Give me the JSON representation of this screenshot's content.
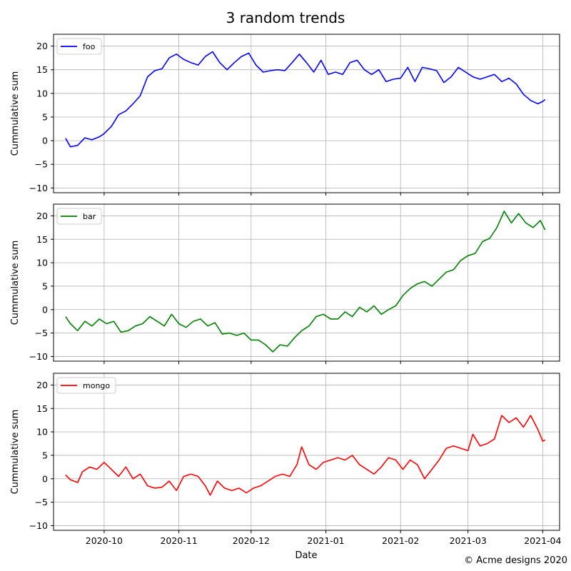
{
  "title": "3 random trends",
  "credit": "© Acme designs 2020",
  "chart_data": {
    "type": "line",
    "shared_x": true,
    "xlabel": "Date",
    "x_ticks": [
      "2020-10",
      "2020-11",
      "2020-12",
      "2021-01",
      "2021-02",
      "2021-03",
      "2021-04"
    ],
    "y_ticks": [
      "−10",
      "−5",
      "0",
      "5",
      "10",
      "15",
      "20"
    ],
    "ylim": [
      -11,
      22.5
    ],
    "grid": true,
    "legend_position": "top-left",
    "panels": [
      {
        "ylabel": "Cummulative sum",
        "series": [
          {
            "name": "foo",
            "color": "#0000ff",
            "points": [
              [
                "2020-09-15",
                0.5
              ],
              [
                "2020-09-17",
                -1.3
              ],
              [
                "2020-09-20",
                -1.0
              ],
              [
                "2020-09-23",
                0.6
              ],
              [
                "2020-09-26",
                0.2
              ],
              [
                "2020-09-29",
                0.8
              ],
              [
                "2020-10-01",
                1.5
              ],
              [
                "2020-10-04",
                3.0
              ],
              [
                "2020-10-07",
                5.5
              ],
              [
                "2020-10-10",
                6.3
              ],
              [
                "2020-10-13",
                7.8
              ],
              [
                "2020-10-16",
                9.5
              ],
              [
                "2020-10-19",
                13.5
              ],
              [
                "2020-10-22",
                14.8
              ],
              [
                "2020-10-25",
                15.2
              ],
              [
                "2020-10-28",
                17.5
              ],
              [
                "2020-10-31",
                18.3
              ],
              [
                "2020-11-03",
                17.2
              ],
              [
                "2020-11-06",
                16.5
              ],
              [
                "2020-11-09",
                16.0
              ],
              [
                "2020-11-12",
                17.8
              ],
              [
                "2020-11-15",
                18.8
              ],
              [
                "2020-11-18",
                16.5
              ],
              [
                "2020-11-21",
                15.0
              ],
              [
                "2020-11-24",
                16.5
              ],
              [
                "2020-11-27",
                17.8
              ],
              [
                "2020-11-30",
                18.5
              ],
              [
                "2020-12-03",
                16.0
              ],
              [
                "2020-12-06",
                14.5
              ],
              [
                "2020-12-09",
                14.8
              ],
              [
                "2020-12-12",
                15.0
              ],
              [
                "2020-12-15",
                14.8
              ],
              [
                "2020-12-18",
                16.5
              ],
              [
                "2020-12-21",
                18.3
              ],
              [
                "2020-12-24",
                16.5
              ],
              [
                "2020-12-27",
                14.5
              ],
              [
                "2020-12-30",
                17.0
              ],
              [
                "2021-01-02",
                14.0
              ],
              [
                "2021-01-05",
                14.5
              ],
              [
                "2021-01-08",
                14.0
              ],
              [
                "2021-01-11",
                16.5
              ],
              [
                "2021-01-14",
                17.0
              ],
              [
                "2021-01-17",
                15.0
              ],
              [
                "2021-01-20",
                14.0
              ],
              [
                "2021-01-23",
                15.0
              ],
              [
                "2021-01-26",
                12.5
              ],
              [
                "2021-01-29",
                13.0
              ],
              [
                "2021-02-01",
                13.2
              ],
              [
                "2021-02-04",
                15.5
              ],
              [
                "2021-02-07",
                12.5
              ],
              [
                "2021-02-10",
                15.5
              ],
              [
                "2021-02-13",
                15.2
              ],
              [
                "2021-02-16",
                14.8
              ],
              [
                "2021-02-19",
                12.3
              ],
              [
                "2021-02-22",
                13.5
              ],
              [
                "2021-02-25",
                15.5
              ],
              [
                "2021-02-28",
                14.5
              ],
              [
                "2021-03-03",
                13.5
              ],
              [
                "2021-03-06",
                13.0
              ],
              [
                "2021-03-09",
                13.5
              ],
              [
                "2021-03-12",
                14.0
              ],
              [
                "2021-03-15",
                12.5
              ],
              [
                "2021-03-18",
                13.2
              ],
              [
                "2021-03-21",
                12.0
              ],
              [
                "2021-03-24",
                9.8
              ],
              [
                "2021-03-27",
                8.5
              ],
              [
                "2021-03-30",
                7.8
              ],
              [
                "2021-04-01",
                8.3
              ],
              [
                "2021-04-02",
                8.7
              ]
            ]
          }
        ]
      },
      {
        "ylabel": "Cummulative sum",
        "series": [
          {
            "name": "bar",
            "color": "#008000",
            "points": [
              [
                "2020-09-15",
                -1.5
              ],
              [
                "2020-09-17",
                -3.0
              ],
              [
                "2020-09-20",
                -4.5
              ],
              [
                "2020-09-23",
                -2.5
              ],
              [
                "2020-09-26",
                -3.5
              ],
              [
                "2020-09-29",
                -2.0
              ],
              [
                "2020-10-02",
                -3.0
              ],
              [
                "2020-10-05",
                -2.5
              ],
              [
                "2020-10-08",
                -4.8
              ],
              [
                "2020-10-11",
                -4.5
              ],
              [
                "2020-10-14",
                -3.5
              ],
              [
                "2020-10-17",
                -3.0
              ],
              [
                "2020-10-20",
                -1.5
              ],
              [
                "2020-10-23",
                -2.5
              ],
              [
                "2020-10-26",
                -3.5
              ],
              [
                "2020-10-29",
                -1.0
              ],
              [
                "2020-11-01",
                -3.0
              ],
              [
                "2020-11-04",
                -3.8
              ],
              [
                "2020-11-07",
                -2.5
              ],
              [
                "2020-11-10",
                -2.0
              ],
              [
                "2020-11-13",
                -3.5
              ],
              [
                "2020-11-16",
                -2.8
              ],
              [
                "2020-11-19",
                -5.2
              ],
              [
                "2020-11-22",
                -5.0
              ],
              [
                "2020-11-25",
                -5.5
              ],
              [
                "2020-11-28",
                -5.0
              ],
              [
                "2020-12-01",
                -6.5
              ],
              [
                "2020-12-04",
                -6.5
              ],
              [
                "2020-12-07",
                -7.5
              ],
              [
                "2020-12-10",
                -9.0
              ],
              [
                "2020-12-13",
                -7.5
              ],
              [
                "2020-12-16",
                -7.8
              ],
              [
                "2020-12-19",
                -6.0
              ],
              [
                "2020-12-22",
                -4.5
              ],
              [
                "2020-12-25",
                -3.5
              ],
              [
                "2020-12-28",
                -1.5
              ],
              [
                "2020-12-31",
                -1.0
              ],
              [
                "2021-01-03",
                -2.0
              ],
              [
                "2021-01-06",
                -2.0
              ],
              [
                "2021-01-09",
                -0.5
              ],
              [
                "2021-01-12",
                -1.5
              ],
              [
                "2021-01-15",
                0.5
              ],
              [
                "2021-01-18",
                -0.5
              ],
              [
                "2021-01-21",
                0.8
              ],
              [
                "2021-01-24",
                -1.0
              ],
              [
                "2021-01-27",
                0.0
              ],
              [
                "2021-01-30",
                0.8
              ],
              [
                "2021-02-02",
                3.0
              ],
              [
                "2021-02-05",
                4.5
              ],
              [
                "2021-02-08",
                5.5
              ],
              [
                "2021-02-11",
                6.0
              ],
              [
                "2021-02-14",
                5.0
              ],
              [
                "2021-02-17",
                6.5
              ],
              [
                "2021-02-20",
                8.0
              ],
              [
                "2021-02-23",
                8.5
              ],
              [
                "2021-02-26",
                10.5
              ],
              [
                "2021-03-01",
                11.5
              ],
              [
                "2021-03-04",
                12.0
              ],
              [
                "2021-03-07",
                14.5
              ],
              [
                "2021-03-10",
                15.2
              ],
              [
                "2021-03-13",
                17.5
              ],
              [
                "2021-03-16",
                21.0
              ],
              [
                "2021-03-19",
                18.5
              ],
              [
                "2021-03-22",
                20.5
              ],
              [
                "2021-03-25",
                18.5
              ],
              [
                "2021-03-28",
                17.5
              ],
              [
                "2021-03-31",
                19.0
              ],
              [
                "2021-04-02",
                17.0
              ]
            ]
          }
        ]
      },
      {
        "ylabel": "Cummulative sum",
        "series": [
          {
            "name": "mongo",
            "color": "#ff0000",
            "points": [
              [
                "2020-09-15",
                0.8
              ],
              [
                "2020-09-17",
                -0.2
              ],
              [
                "2020-09-20",
                -0.8
              ],
              [
                "2020-09-22",
                1.5
              ],
              [
                "2020-09-25",
                2.5
              ],
              [
                "2020-09-28",
                2.0
              ],
              [
                "2020-10-01",
                3.5
              ],
              [
                "2020-10-04",
                2.0
              ],
              [
                "2020-10-07",
                0.5
              ],
              [
                "2020-10-10",
                2.5
              ],
              [
                "2020-10-13",
                0.0
              ],
              [
                "2020-10-16",
                1.0
              ],
              [
                "2020-10-19",
                -1.5
              ],
              [
                "2020-10-22",
                -2.0
              ],
              [
                "2020-10-25",
                -1.8
              ],
              [
                "2020-10-28",
                -0.5
              ],
              [
                "2020-10-31",
                -2.5
              ],
              [
                "2020-11-03",
                0.5
              ],
              [
                "2020-11-06",
                1.0
              ],
              [
                "2020-11-09",
                0.5
              ],
              [
                "2020-11-12",
                -1.5
              ],
              [
                "2020-11-14",
                -3.5
              ],
              [
                "2020-11-17",
                -0.5
              ],
              [
                "2020-11-20",
                -2.0
              ],
              [
                "2020-11-23",
                -2.5
              ],
              [
                "2020-11-26",
                -2.0
              ],
              [
                "2020-11-29",
                -3.0
              ],
              [
                "2020-12-02",
                -2.0
              ],
              [
                "2020-12-05",
                -1.5
              ],
              [
                "2020-12-08",
                -0.5
              ],
              [
                "2020-12-11",
                0.5
              ],
              [
                "2020-12-14",
                1.0
              ],
              [
                "2020-12-17",
                0.5
              ],
              [
                "2020-12-20",
                3.0
              ],
              [
                "2020-12-22",
                6.8
              ],
              [
                "2020-12-25",
                3.0
              ],
              [
                "2020-12-28",
                2.0
              ],
              [
                "2020-12-31",
                3.5
              ],
              [
                "2021-01-03",
                4.0
              ],
              [
                "2021-01-06",
                4.5
              ],
              [
                "2021-01-09",
                4.0
              ],
              [
                "2021-01-12",
                5.0
              ],
              [
                "2021-01-15",
                3.0
              ],
              [
                "2021-01-18",
                2.0
              ],
              [
                "2021-01-21",
                1.0
              ],
              [
                "2021-01-24",
                2.5
              ],
              [
                "2021-01-27",
                4.5
              ],
              [
                "2021-01-30",
                4.0
              ],
              [
                "2021-02-02",
                2.0
              ],
              [
                "2021-02-05",
                4.0
              ],
              [
                "2021-02-08",
                3.0
              ],
              [
                "2021-02-11",
                0.0
              ],
              [
                "2021-02-14",
                2.0
              ],
              [
                "2021-02-17",
                4.0
              ],
              [
                "2021-02-20",
                6.5
              ],
              [
                "2021-02-23",
                7.0
              ],
              [
                "2021-02-26",
                6.5
              ],
              [
                "2021-03-01",
                6.0
              ],
              [
                "2021-03-03",
                9.5
              ],
              [
                "2021-03-06",
                7.0
              ],
              [
                "2021-03-09",
                7.5
              ],
              [
                "2021-03-12",
                8.5
              ],
              [
                "2021-03-15",
                13.5
              ],
              [
                "2021-03-18",
                12.0
              ],
              [
                "2021-03-21",
                13.0
              ],
              [
                "2021-03-24",
                11.0
              ],
              [
                "2021-03-27",
                13.5
              ],
              [
                "2021-03-30",
                10.5
              ],
              [
                "2021-04-01",
                8.0
              ],
              [
                "2021-04-02",
                8.3
              ]
            ]
          }
        ]
      }
    ]
  }
}
